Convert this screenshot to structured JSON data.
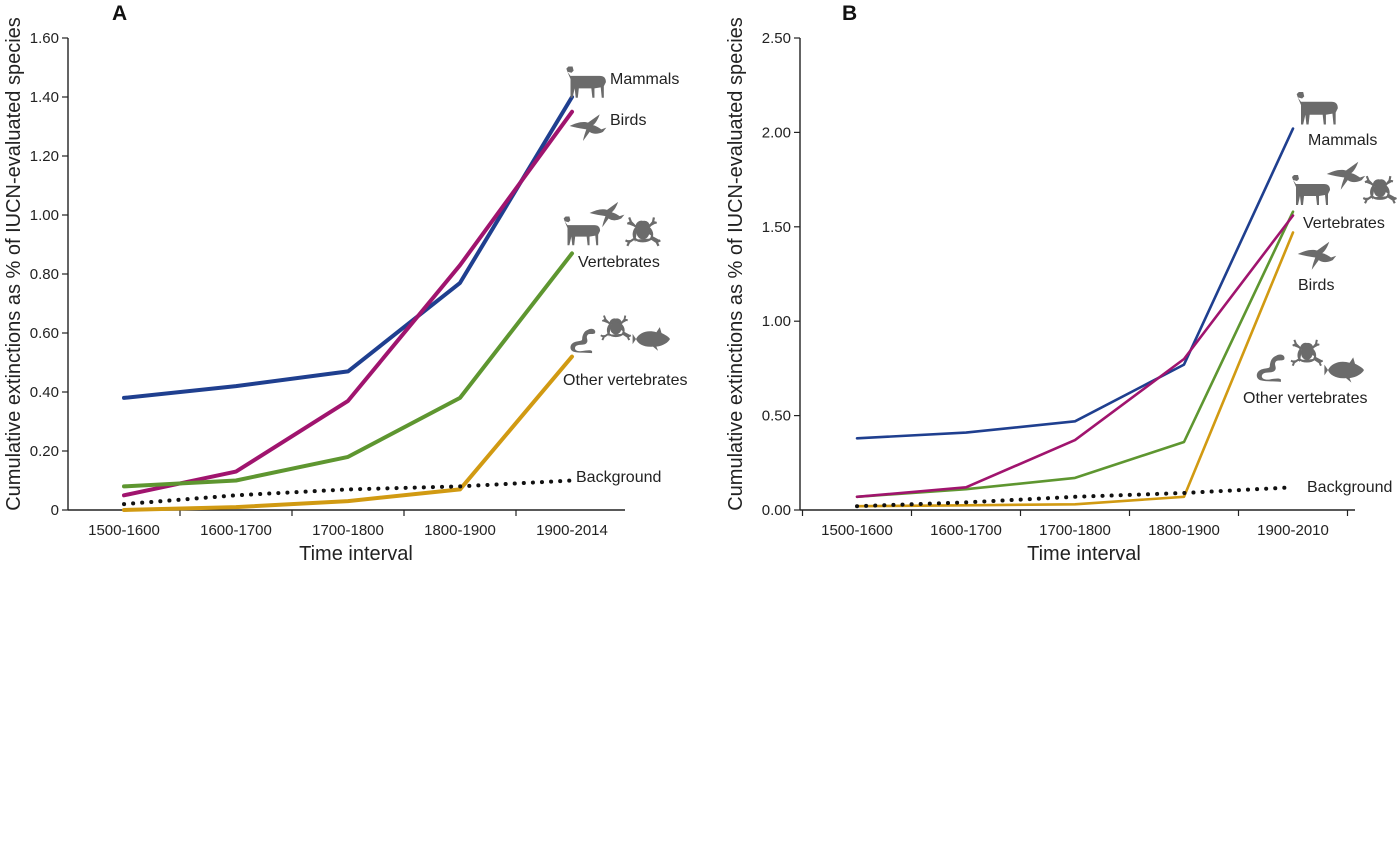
{
  "chart_data": [
    {
      "type": "line",
      "panel": "A",
      "xlabel": "Time interval",
      "ylabel": "Cumulative extinctions as % of IUCN-evaluated species",
      "categories": [
        "1500-1600",
        "1600-1700",
        "1700-1800",
        "1800-1900",
        "1900-2014"
      ],
      "ylim": [
        0,
        1.6
      ],
      "yticks": [
        "0",
        "0.20",
        "0.40",
        "0.60",
        "0.80",
        "1.00",
        "1.20",
        "1.40",
        "1.60"
      ],
      "series": [
        {
          "name": "Mammals",
          "color": "#1f3f8f",
          "icons": [
            "deer-icon"
          ],
          "values": [
            0.38,
            0.42,
            0.47,
            0.77,
            1.4
          ]
        },
        {
          "name": "Birds",
          "color": "#a0146e",
          "icons": [
            "swallow-icon"
          ],
          "values": [
            0.05,
            0.13,
            0.37,
            0.83,
            1.35
          ]
        },
        {
          "name": "Vertebrates",
          "color": "#5e9630",
          "icons": [
            "deer-icon",
            "swallow-icon",
            "frog-icon"
          ],
          "values": [
            0.08,
            0.1,
            0.18,
            0.38,
            0.87
          ]
        },
        {
          "name": "Other vertebrates",
          "color": "#d19a12",
          "icons": [
            "snake-icon",
            "frog-icon",
            "fish-icon"
          ],
          "values": [
            0.0,
            0.01,
            0.03,
            0.07,
            0.52
          ]
        },
        {
          "name": "Background",
          "color": "#111111",
          "style": "dotted",
          "values": [
            0.02,
            0.05,
            0.07,
            0.08,
            0.1
          ]
        }
      ]
    },
    {
      "type": "line",
      "panel": "B",
      "xlabel": "Time interval",
      "ylabel": "Cumulative extinctions as % of IUCN-evaluated species",
      "categories": [
        "1500-1600",
        "1600-1700",
        "1700-1800",
        "1800-1900",
        "1900-2010"
      ],
      "ylim": [
        0,
        2.5
      ],
      "yticks": [
        "0.00",
        "0.50",
        "1.00",
        "1.50",
        "2.00",
        "2.50"
      ],
      "series": [
        {
          "name": "Mammals",
          "color": "#1f3f8f",
          "icons": [
            "deer-icon"
          ],
          "values": [
            0.38,
            0.41,
            0.47,
            0.77,
            2.02
          ]
        },
        {
          "name": "Vertebrates",
          "color": "#5e9630",
          "icons": [
            "deer-icon",
            "swallow-icon",
            "frog-icon"
          ],
          "values": [
            0.07,
            0.11,
            0.17,
            0.36,
            1.58
          ]
        },
        {
          "name": "Birds",
          "color": "#a0146e",
          "icons": [
            "swallow-icon"
          ],
          "values": [
            0.07,
            0.12,
            0.37,
            0.8,
            1.56
          ]
        },
        {
          "name": "Other vertebrates",
          "color": "#d19a12",
          "icons": [
            "snake-icon",
            "frog-icon",
            "fish-icon"
          ],
          "values": [
            0.02,
            0.025,
            0.03,
            0.07,
            1.47
          ]
        },
        {
          "name": "Background",
          "color": "#111111",
          "style": "dotted",
          "values": [
            0.02,
            0.04,
            0.07,
            0.09,
            0.12
          ]
        }
      ]
    }
  ]
}
